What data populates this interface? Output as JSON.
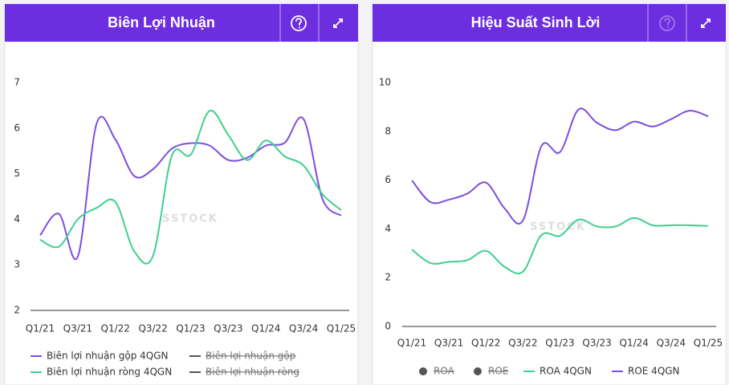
{
  "chart_data": [
    {
      "type": "line",
      "title": "Biên Lợi Nhuận",
      "watermark": "SSTOCK",
      "categories": [
        "Q1/21",
        null,
        "Q3/21",
        null,
        "Q1/22",
        null,
        "Q3/22",
        null,
        "Q1/23",
        null,
        "Q3/23",
        null,
        "Q1/24",
        null,
        "Q3/24",
        null,
        "Q1/25"
      ],
      "ylim": [
        2,
        7
      ],
      "yticks": [
        2,
        3,
        4,
        5,
        6,
        7
      ],
      "grid": false,
      "series": [
        {
          "name": "Biên lợi nhuận gộp 4QGN",
          "color": "#7b4fe0",
          "values": [
            3.65,
            4.12,
            3.18,
            6.1,
            5.75,
            4.95,
            5.1,
            5.55,
            5.67,
            5.62,
            5.3,
            5.35,
            5.62,
            5.68,
            6.2,
            4.45,
            4.08
          ]
        },
        {
          "name": "Biên lợi nhuận ròng 4QGN",
          "color": "#3ecf8e",
          "values": [
            3.55,
            3.4,
            4.0,
            4.25,
            4.38,
            3.3,
            3.2,
            5.4,
            5.42,
            6.38,
            5.85,
            5.3,
            5.73,
            5.38,
            5.18,
            4.55,
            4.2
          ]
        }
      ],
      "hidden_series": [
        {
          "name": "Biên lợi nhuận gộp",
          "color": "#555555"
        },
        {
          "name": "Biên lợi nhuận ròng",
          "color": "#555555"
        }
      ]
    },
    {
      "type": "line",
      "title": "Hiệu Suất Sinh Lời",
      "watermark": "SSTOCK",
      "categories": [
        "Q1/21",
        null,
        "Q3/21",
        null,
        "Q1/22",
        null,
        "Q3/22",
        null,
        "Q1/23",
        null,
        "Q3/23",
        null,
        "Q1/24",
        null,
        "Q3/24",
        null,
        "Q1/25"
      ],
      "ylim": [
        0,
        10
      ],
      "yticks": [
        0,
        2,
        4,
        6,
        8,
        10
      ],
      "grid": false,
      "series": [
        {
          "name": "ROA 4QGN",
          "color": "#3ecf8e",
          "values": [
            3.15,
            2.6,
            2.65,
            2.72,
            3.1,
            2.45,
            2.25,
            3.75,
            3.72,
            4.38,
            4.1,
            4.1,
            4.45,
            4.15,
            4.15,
            4.15,
            4.12
          ]
        },
        {
          "name": "ROE 4QGN",
          "color": "#7b4fe0",
          "values": [
            5.99,
            5.1,
            5.2,
            5.45,
            5.9,
            4.85,
            4.35,
            7.4,
            7.15,
            8.9,
            8.35,
            8.05,
            8.4,
            8.2,
            8.5,
            8.85,
            8.62
          ]
        }
      ],
      "hidden_series": [
        {
          "name": "ROA",
          "color": "#555555",
          "marker": "circle"
        },
        {
          "name": "ROE",
          "color": "#555555",
          "marker": "circle"
        }
      ]
    }
  ]
}
